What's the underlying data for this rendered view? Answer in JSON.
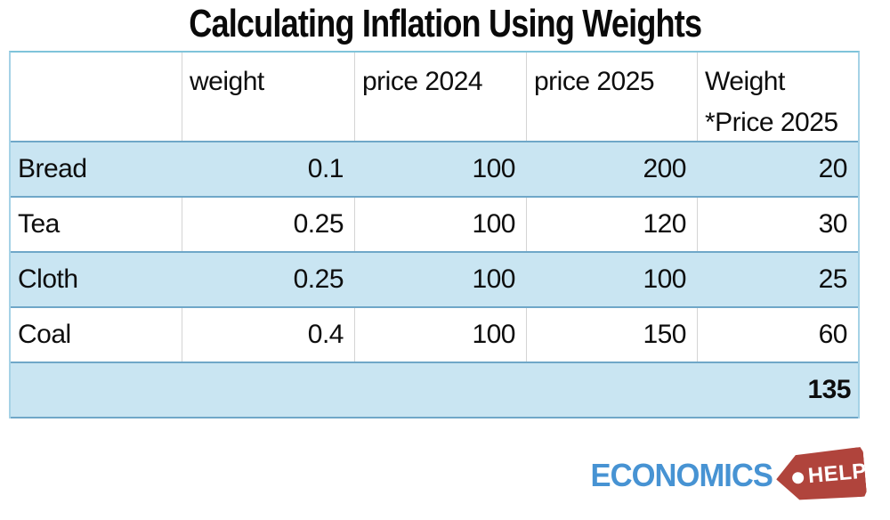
{
  "title": "Calculating Inflation Using Weights",
  "table": {
    "headers": {
      "item": "",
      "weight": "weight",
      "price_2024": "price 2024",
      "price_2025": "price 2025",
      "weight_x_price_line1": "Weight",
      "weight_x_price_line2": "*Price 2025"
    },
    "rows": [
      {
        "label": "Bread",
        "weight": "0.1",
        "price_2024": "100",
        "price_2025": "200",
        "weight_x_price": "20"
      },
      {
        "label": "Tea",
        "weight": "0.25",
        "price_2024": "100",
        "price_2025": "120",
        "weight_x_price": "30"
      },
      {
        "label": "Cloth",
        "weight": "0.25",
        "price_2024": "100",
        "price_2025": "100",
        "weight_x_price": "25"
      },
      {
        "label": "Coal",
        "weight": "0.4",
        "price_2024": "100",
        "price_2025": "150",
        "weight_x_price": "60"
      }
    ],
    "total": "135"
  },
  "logo": {
    "wordmark": "ECONOMICS",
    "tag_label": "HELP"
  },
  "colors": {
    "row_highlight": "#c9e5f2",
    "row_separator": "#6fa7c8",
    "table_outline": "#a5d2e6",
    "logo_blue": "#4793d3",
    "logo_red": "#b0443c"
  }
}
